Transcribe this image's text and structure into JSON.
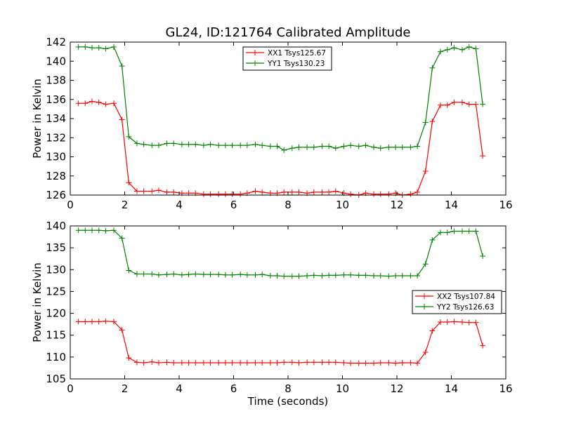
{
  "title": "GL24, ID:121764 Calibrated Amplitude",
  "colors": {
    "XX": "#ff0000",
    "YY": "#008000"
  },
  "chart_data": [
    {
      "type": "line",
      "ylabel": "Power in Kelvin",
      "xlabel": "",
      "xlim": [
        0,
        16
      ],
      "ylim": [
        126,
        142
      ],
      "xticks": [
        0,
        2,
        4,
        6,
        8,
        10,
        12,
        14,
        16
      ],
      "yticks": [
        126,
        128,
        130,
        132,
        134,
        136,
        138,
        140,
        142
      ],
      "legend_position": "upper-center",
      "series": [
        {
          "name": "XX1 Tsys125.67",
          "color": "#ff0000",
          "x": [
            0.3,
            0.55,
            0.8,
            1.05,
            1.3,
            1.6,
            1.9,
            2.15,
            2.45,
            2.7,
            3.0,
            3.25,
            3.55,
            3.8,
            4.1,
            4.35,
            4.6,
            4.9,
            5.15,
            5.45,
            5.7,
            5.95,
            6.25,
            6.5,
            6.8,
            7.05,
            7.35,
            7.6,
            7.85,
            8.15,
            8.4,
            8.7,
            8.95,
            9.25,
            9.5,
            9.75,
            10.05,
            10.3,
            10.6,
            10.85,
            11.15,
            11.4,
            11.7,
            11.95,
            12.2,
            12.5,
            12.75,
            13.05,
            13.3,
            13.6,
            13.85,
            14.1,
            14.4,
            14.65,
            14.9,
            15.15
          ],
          "y": [
            135.6,
            135.6,
            135.8,
            135.7,
            135.5,
            135.6,
            133.9,
            127.3,
            126.4,
            126.4,
            126.4,
            126.5,
            126.3,
            126.3,
            126.2,
            126.2,
            126.2,
            126.1,
            126.1,
            126.1,
            126.1,
            126.1,
            126.1,
            126.2,
            126.4,
            126.3,
            126.2,
            126.2,
            126.3,
            126.3,
            126.3,
            126.2,
            126.3,
            126.3,
            126.3,
            126.4,
            126.2,
            126.1,
            126.0,
            126.2,
            126.1,
            126.1,
            126.1,
            126.2,
            126.0,
            126.1,
            126.3,
            128.5,
            133.7,
            135.4,
            135.4,
            135.7,
            135.7,
            135.5,
            135.5,
            130.1
          ]
        },
        {
          "name": "YY1 Tsys130.23",
          "color": "#008000",
          "x": [
            0.3,
            0.55,
            0.8,
            1.05,
            1.3,
            1.6,
            1.9,
            2.15,
            2.45,
            2.7,
            3.0,
            3.25,
            3.55,
            3.8,
            4.1,
            4.35,
            4.6,
            4.9,
            5.15,
            5.45,
            5.7,
            5.95,
            6.25,
            6.5,
            6.8,
            7.05,
            7.35,
            7.6,
            7.85,
            8.15,
            8.4,
            8.7,
            8.95,
            9.25,
            9.5,
            9.75,
            10.05,
            10.3,
            10.6,
            10.85,
            11.15,
            11.4,
            11.7,
            11.95,
            12.2,
            12.5,
            12.75,
            13.05,
            13.3,
            13.6,
            13.85,
            14.1,
            14.4,
            14.65,
            14.9,
            15.15
          ],
          "y": [
            141.5,
            141.5,
            141.4,
            141.4,
            141.3,
            141.5,
            139.5,
            132.1,
            131.4,
            131.3,
            131.2,
            131.2,
            131.4,
            131.4,
            131.3,
            131.3,
            131.3,
            131.2,
            131.3,
            131.2,
            131.2,
            131.2,
            131.2,
            131.2,
            131.3,
            131.2,
            131.1,
            131.1,
            130.7,
            130.9,
            131.0,
            131.0,
            131.0,
            131.1,
            131.1,
            130.9,
            131.1,
            131.2,
            131.1,
            131.2,
            131.0,
            130.9,
            131.0,
            131.0,
            131.0,
            131.0,
            131.1,
            133.6,
            139.3,
            141.0,
            141.2,
            141.4,
            141.2,
            141.5,
            141.3,
            135.5
          ]
        }
      ]
    },
    {
      "type": "line",
      "ylabel": "Power in Kelvin",
      "xlabel": "Time (seconds)",
      "xlim": [
        0,
        16
      ],
      "ylim": [
        105,
        140
      ],
      "xticks": [
        0,
        2,
        4,
        6,
        8,
        10,
        12,
        14,
        16
      ],
      "yticks": [
        105,
        110,
        115,
        120,
        125,
        130,
        135,
        140
      ],
      "legend_position": "right",
      "series": [
        {
          "name": "XX2 Tsys107.84",
          "color": "#ff0000",
          "x": [
            0.3,
            0.55,
            0.8,
            1.05,
            1.3,
            1.6,
            1.9,
            2.15,
            2.45,
            2.7,
            3.0,
            3.25,
            3.55,
            3.8,
            4.1,
            4.35,
            4.6,
            4.9,
            5.15,
            5.45,
            5.7,
            5.95,
            6.25,
            6.5,
            6.8,
            7.05,
            7.35,
            7.6,
            7.85,
            8.15,
            8.4,
            8.7,
            8.95,
            9.25,
            9.5,
            9.75,
            10.05,
            10.3,
            10.6,
            10.85,
            11.15,
            11.4,
            11.7,
            11.95,
            12.2,
            12.5,
            12.75,
            13.05,
            13.3,
            13.6,
            13.85,
            14.1,
            14.4,
            14.65,
            14.9,
            15.15
          ],
          "y": [
            118.1,
            118.1,
            118.1,
            118.1,
            118.2,
            118.1,
            116.2,
            109.8,
            108.8,
            108.7,
            108.9,
            108.7,
            108.8,
            108.7,
            108.7,
            108.7,
            108.7,
            108.7,
            108.7,
            108.7,
            108.7,
            108.7,
            108.7,
            108.7,
            108.7,
            108.7,
            108.7,
            108.7,
            108.8,
            108.8,
            108.7,
            108.8,
            108.8,
            108.8,
            108.8,
            108.8,
            108.7,
            108.6,
            108.6,
            108.6,
            108.6,
            108.7,
            108.7,
            108.6,
            108.7,
            108.7,
            108.6,
            111.1,
            116.0,
            118.0,
            118.0,
            118.1,
            118.0,
            117.9,
            117.9,
            112.6
          ]
        },
        {
          "name": "YY2 Tsys126.63",
          "color": "#008000",
          "x": [
            0.3,
            0.55,
            0.8,
            1.05,
            1.3,
            1.6,
            1.9,
            2.15,
            2.45,
            2.7,
            3.0,
            3.25,
            3.55,
            3.8,
            4.1,
            4.35,
            4.6,
            4.9,
            5.15,
            5.45,
            5.7,
            5.95,
            6.25,
            6.5,
            6.8,
            7.05,
            7.35,
            7.6,
            7.85,
            8.15,
            8.4,
            8.7,
            8.95,
            9.25,
            9.5,
            9.75,
            10.05,
            10.3,
            10.6,
            10.85,
            11.15,
            11.4,
            11.7,
            11.95,
            12.2,
            12.5,
            12.75,
            13.05,
            13.3,
            13.6,
            13.85,
            14.1,
            14.4,
            14.65,
            14.9,
            15.15
          ],
          "y": [
            139.0,
            139.0,
            139.0,
            139.0,
            138.9,
            139.0,
            137.2,
            129.8,
            129.0,
            129.0,
            129.0,
            128.8,
            128.9,
            129.0,
            128.8,
            128.9,
            129.0,
            128.9,
            128.9,
            128.9,
            128.8,
            128.8,
            128.9,
            128.8,
            128.8,
            128.9,
            128.6,
            128.6,
            128.5,
            128.5,
            128.5,
            128.6,
            128.7,
            128.6,
            128.7,
            128.7,
            128.8,
            128.8,
            128.7,
            128.7,
            128.6,
            128.6,
            128.5,
            128.6,
            128.6,
            128.6,
            128.6,
            131.3,
            136.8,
            138.5,
            138.5,
            138.8,
            138.8,
            138.8,
            138.8,
            133.1
          ]
        }
      ]
    }
  ]
}
